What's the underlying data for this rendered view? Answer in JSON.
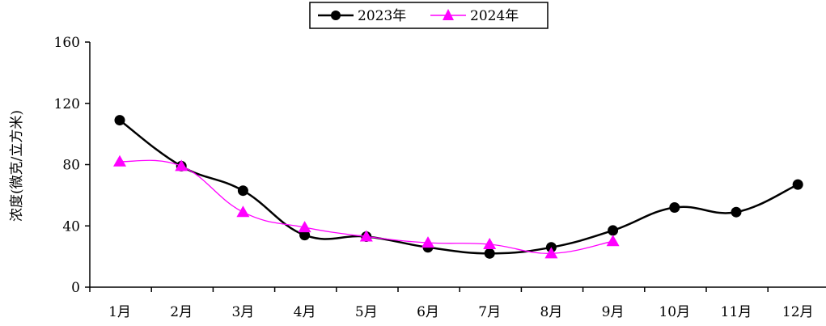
{
  "chart_data": {
    "type": "line",
    "categories": [
      "1月",
      "2月",
      "3月",
      "4月",
      "5月",
      "6月",
      "7月",
      "8月",
      "9月",
      "10月",
      "11月",
      "12月"
    ],
    "series": [
      {
        "name": "2023年",
        "color": "#000000",
        "marker": "circle",
        "values": [
          109,
          79,
          63,
          34,
          33,
          26,
          22,
          26,
          37,
          52,
          49,
          67
        ]
      },
      {
        "name": "2024年",
        "color": "#ff00ff",
        "marker": "triangle",
        "values": [
          82,
          79,
          49,
          39,
          33,
          29,
          28,
          22,
          30,
          null,
          null,
          null
        ]
      }
    ],
    "title": "",
    "xlabel": "",
    "ylabel": "浓度(微克/立方米)",
    "ylim": [
      0,
      160
    ],
    "yticks": [
      0,
      40,
      80,
      120,
      160
    ],
    "grid": false,
    "legend": "top-center",
    "smooth": true
  }
}
